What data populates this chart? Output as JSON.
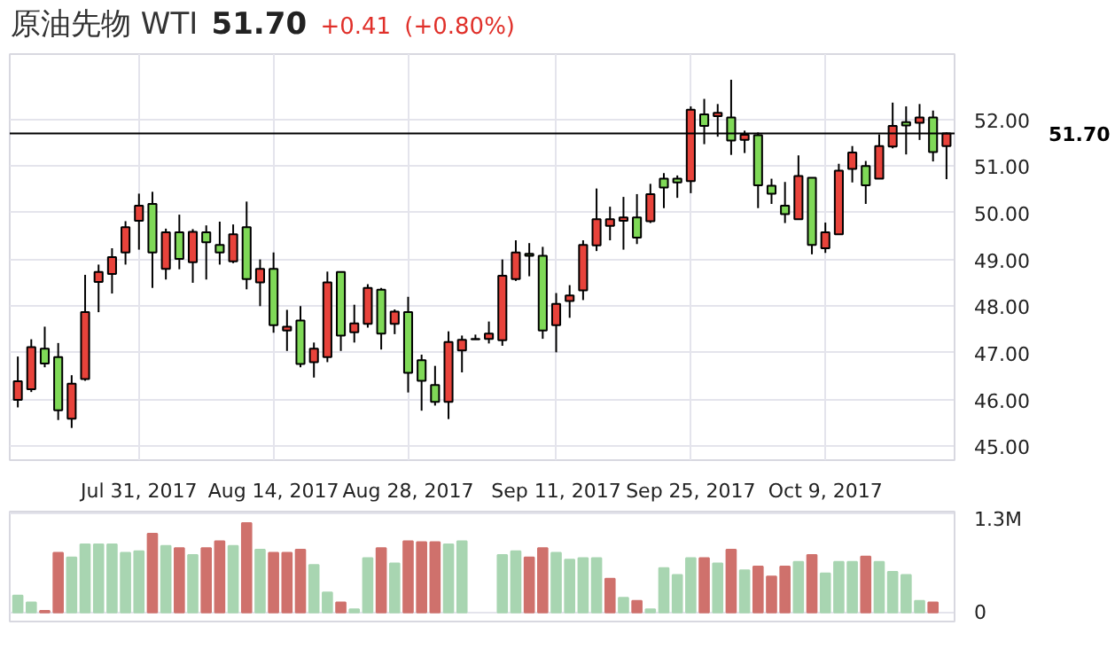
{
  "chart_data": [
    {
      "type": "candlestick",
      "title": "原油先物 WTI",
      "annotations": [
        "51.70",
        "+0.41",
        "(+0.80%)"
      ],
      "categories": [
        null,
        null,
        null,
        null,
        null,
        null,
        null,
        null,
        null,
        "Jul 31, 2017",
        null,
        null,
        null,
        null,
        null,
        null,
        null,
        null,
        null,
        "Aug 14, 2017",
        null,
        null,
        null,
        null,
        null,
        null,
        null,
        null,
        null,
        "Aug 28, 2017",
        null,
        null,
        null,
        null,
        null,
        null,
        null,
        null,
        null,
        null,
        "Sep 11, 2017",
        null,
        null,
        null,
        null,
        null,
        null,
        null,
        null,
        null,
        "Sep 25, 2017",
        null,
        null,
        null,
        null,
        null,
        null,
        null,
        null,
        null,
        "Oct 9, 2017",
        null,
        null,
        null,
        null,
        null,
        null,
        null,
        null,
        null
      ],
      "ohlc": [
        [
          45.99,
          46.92,
          45.83,
          46.39
        ],
        [
          46.22,
          47.29,
          46.16,
          47.12
        ],
        [
          47.09,
          47.56,
          46.69,
          46.77
        ],
        [
          46.91,
          47.21,
          45.56,
          45.77
        ],
        [
          45.59,
          46.52,
          45.39,
          46.34
        ],
        [
          46.44,
          48.67,
          46.4,
          47.87
        ],
        [
          48.52,
          48.89,
          47.87,
          48.73
        ],
        [
          48.69,
          49.24,
          48.27,
          49.05
        ],
        [
          49.15,
          49.82,
          48.89,
          49.69
        ],
        [
          49.83,
          50.41,
          49.21,
          50.15
        ],
        [
          50.19,
          50.45,
          48.39,
          49.15
        ],
        [
          48.8,
          49.66,
          48.57,
          49.58
        ],
        [
          49.58,
          49.96,
          48.79,
          49.01
        ],
        [
          48.94,
          49.65,
          48.5,
          49.59
        ],
        [
          49.58,
          49.73,
          48.57,
          49.37
        ],
        [
          49.31,
          49.81,
          48.89,
          49.15
        ],
        [
          48.96,
          49.75,
          48.92,
          49.54
        ],
        [
          49.69,
          50.24,
          48.36,
          48.58
        ],
        [
          48.51,
          49.0,
          48.0,
          48.8
        ],
        [
          48.8,
          49.15,
          47.43,
          47.59
        ],
        [
          47.48,
          47.92,
          47.04,
          47.56
        ],
        [
          47.69,
          48.0,
          46.69,
          46.76
        ],
        [
          46.8,
          47.22,
          46.47,
          47.09
        ],
        [
          46.91,
          48.74,
          46.8,
          48.51
        ],
        [
          48.73,
          48.73,
          47.04,
          47.37
        ],
        [
          47.44,
          48.03,
          47.22,
          47.63
        ],
        [
          47.62,
          48.47,
          47.54,
          48.39
        ],
        [
          48.35,
          48.39,
          47.07,
          47.41
        ],
        [
          47.62,
          47.93,
          47.4,
          47.88
        ],
        [
          47.87,
          48.2,
          46.15,
          46.57
        ],
        [
          46.84,
          46.96,
          45.76,
          46.4
        ],
        [
          46.31,
          46.72,
          45.87,
          45.95
        ],
        [
          45.95,
          47.46,
          45.58,
          47.23
        ],
        [
          47.05,
          47.37,
          46.58,
          47.28
        ],
        [
          47.29,
          47.39,
          47.29,
          47.3
        ],
        [
          47.3,
          47.67,
          47.2,
          47.41
        ],
        [
          47.27,
          49.0,
          47.15,
          48.65
        ],
        [
          48.58,
          49.41,
          48.54,
          49.15
        ],
        [
          49.12,
          49.35,
          48.64,
          49.08
        ],
        [
          49.08,
          49.27,
          47.3,
          47.48
        ],
        [
          47.59,
          48.28,
          47.01,
          48.05
        ],
        [
          48.11,
          48.45,
          47.75,
          48.23
        ],
        [
          48.34,
          49.41,
          48.13,
          49.31
        ],
        [
          49.3,
          50.52,
          49.18,
          49.86
        ],
        [
          49.72,
          50.13,
          49.41,
          49.86
        ],
        [
          49.83,
          50.34,
          49.21,
          49.9
        ],
        [
          49.9,
          50.4,
          49.33,
          49.47
        ],
        [
          49.82,
          50.62,
          49.78,
          50.4
        ],
        [
          50.73,
          50.85,
          50.1,
          50.54
        ],
        [
          50.73,
          50.8,
          50.32,
          50.65
        ],
        [
          50.68,
          52.28,
          50.42,
          52.21
        ],
        [
          52.11,
          52.44,
          51.47,
          51.86
        ],
        [
          52.07,
          52.33,
          51.63,
          52.14
        ],
        [
          52.04,
          52.85,
          51.24,
          51.55
        ],
        [
          51.56,
          51.76,
          51.28,
          51.67
        ],
        [
          51.66,
          51.72,
          50.1,
          50.59
        ],
        [
          50.58,
          50.73,
          50.19,
          50.41
        ],
        [
          50.15,
          50.66,
          49.78,
          49.97
        ],
        [
          49.86,
          51.23,
          49.86,
          50.79
        ],
        [
          50.75,
          50.75,
          49.11,
          49.31
        ],
        [
          49.24,
          49.79,
          49.14,
          49.58
        ],
        [
          49.54,
          51.05,
          49.54,
          50.9
        ],
        [
          50.94,
          51.43,
          50.65,
          51.29
        ],
        [
          51.0,
          51.11,
          50.19,
          50.59
        ],
        [
          50.73,
          51.68,
          50.73,
          51.43
        ],
        [
          51.42,
          52.36,
          51.38,
          51.86
        ],
        [
          51.94,
          52.28,
          51.25,
          51.87
        ],
        [
          51.93,
          52.33,
          51.56,
          52.04
        ],
        [
          52.04,
          52.19,
          51.1,
          51.3
        ],
        [
          51.43,
          51.72,
          50.72,
          51.7
        ]
      ],
      "colors": [
        "#e8433b",
        "#e8433b",
        "#7fd957",
        "#7fd957",
        "#e8433b",
        "#e8433b",
        "#e8433b",
        "#e8433b",
        "#e8433b",
        "#e8433b",
        "#7fd957",
        "#e8433b",
        "#7fd957",
        "#e8433b",
        "#7fd957",
        "#7fd957",
        "#e8433b",
        "#7fd957",
        "#e8433b",
        "#7fd957",
        "#e8433b",
        "#7fd957",
        "#e8433b",
        "#e8433b",
        "#7fd957",
        "#e8433b",
        "#e8433b",
        "#7fd957",
        "#e8433b",
        "#7fd957",
        "#7fd957",
        "#7fd957",
        "#e8433b",
        "#e8433b",
        "#e8433b",
        "#e8433b",
        "#e8433b",
        "#e8433b",
        "#7fd957",
        "#7fd957",
        "#e8433b",
        "#e8433b",
        "#e8433b",
        "#e8433b",
        "#e8433b",
        "#e8433b",
        "#7fd957",
        "#e8433b",
        "#7fd957",
        "#7fd957",
        "#e8433b",
        "#7fd957",
        "#e8433b",
        "#7fd957",
        "#e8433b",
        "#7fd957",
        "#7fd957",
        "#7fd957",
        "#e8433b",
        "#7fd957",
        "#e8433b",
        "#e8433b",
        "#e8433b",
        "#7fd957",
        "#e8433b",
        "#e8433b",
        "#7fd957",
        "#e8433b",
        "#7fd957",
        "#e8433b"
      ],
      "ylim": [
        44.7,
        53.4
      ],
      "yticks": [
        {
          "value": 45,
          "label": "45.00"
        },
        {
          "value": 46,
          "label": "46.00"
        },
        {
          "value": 47,
          "label": "47.00"
        },
        {
          "value": 48,
          "label": "48.00"
        },
        {
          "value": 49,
          "label": "49.00"
        },
        {
          "value": 50,
          "label": "50.00"
        },
        {
          "value": 51,
          "label": "51.00"
        },
        {
          "value": 52,
          "label": "52.00"
        }
      ],
      "grid": true,
      "ref_lines": [
        {
          "axis": "y",
          "value": 51.7,
          "label": "51.70",
          "color": "#000000"
        }
      ]
    },
    {
      "type": "bar",
      "categories": [
        null,
        null,
        null,
        null,
        null,
        null,
        null,
        null,
        null,
        null,
        null,
        null,
        null,
        null,
        null,
        null,
        null,
        null,
        null,
        null,
        null,
        null,
        null,
        null,
        null,
        null,
        null,
        null,
        null,
        null,
        null,
        null,
        null,
        null,
        null,
        null,
        null,
        null,
        null,
        null,
        null,
        null,
        null,
        null,
        null,
        null,
        null,
        null,
        null,
        null,
        null,
        null,
        null,
        null,
        null,
        null,
        null,
        null,
        null,
        null,
        null,
        null,
        null,
        null,
        null,
        null,
        null,
        null,
        null,
        null
      ],
      "values": [
        0.22,
        0.13,
        0.02,
        0.78,
        0.72,
        0.89,
        0.89,
        0.89,
        0.78,
        0.8,
        1.03,
        0.87,
        0.84,
        0.75,
        0.84,
        0.93,
        0.87,
        1.17,
        0.82,
        0.78,
        0.78,
        0.82,
        0.62,
        0.26,
        0.13,
        0.04,
        0.71,
        0.84,
        0.64,
        0.93,
        0.92,
        0.92,
        0.89,
        0.93,
        null,
        null,
        0.75,
        0.8,
        0.72,
        0.84,
        0.78,
        0.69,
        0.71,
        0.71,
        0.44,
        0.19,
        0.15,
        0.04,
        0.58,
        0.49,
        0.71,
        0.71,
        0.64,
        0.82,
        0.55,
        0.6,
        0.47,
        0.6,
        0.66,
        0.75,
        0.51,
        0.66,
        0.66,
        0.73,
        0.66,
        0.53,
        0.49,
        0.15,
        0.13,
        null
      ],
      "colors": [
        "#a8d5b1",
        "#a8d5b1",
        "#cf716c",
        "#cf716c",
        "#a8d5b1",
        "#a8d5b1",
        "#a8d5b1",
        "#a8d5b1",
        "#a8d5b1",
        "#a8d5b1",
        "#cf716c",
        "#a8d5b1",
        "#cf716c",
        "#a8d5b1",
        "#cf716c",
        "#cf716c",
        "#a8d5b1",
        "#cf716c",
        "#a8d5b1",
        "#cf716c",
        "#cf716c",
        "#cf716c",
        "#a8d5b1",
        "#a8d5b1",
        "#cf716c",
        "#a8d5b1",
        "#a8d5b1",
        "#cf716c",
        "#a8d5b1",
        "#cf716c",
        "#cf716c",
        "#cf716c",
        "#a8d5b1",
        "#a8d5b1",
        null,
        null,
        "#a8d5b1",
        "#a8d5b1",
        "#cf716c",
        "#cf716c",
        "#a8d5b1",
        "#a8d5b1",
        "#a8d5b1",
        "#a8d5b1",
        "#cf716c",
        "#a8d5b1",
        "#cf716c",
        "#a8d5b1",
        "#a8d5b1",
        "#a8d5b1",
        "#a8d5b1",
        "#cf716c",
        "#a8d5b1",
        "#cf716c",
        "#a8d5b1",
        "#cf716c",
        "#cf716c",
        "#cf716c",
        "#a8d5b1",
        "#cf716c",
        "#a8d5b1",
        "#a8d5b1",
        "#a8d5b1",
        "#cf716c",
        "#a8d5b1",
        "#a8d5b1",
        "#a8d5b1",
        "#a8d5b1",
        "#cf716c",
        null
      ],
      "ylim": [
        -0.12,
        1.32
      ],
      "yticks": [
        0,
        {
          "value": 1.3,
          "label": "1.3M"
        }
      ],
      "grid": "y"
    }
  ]
}
